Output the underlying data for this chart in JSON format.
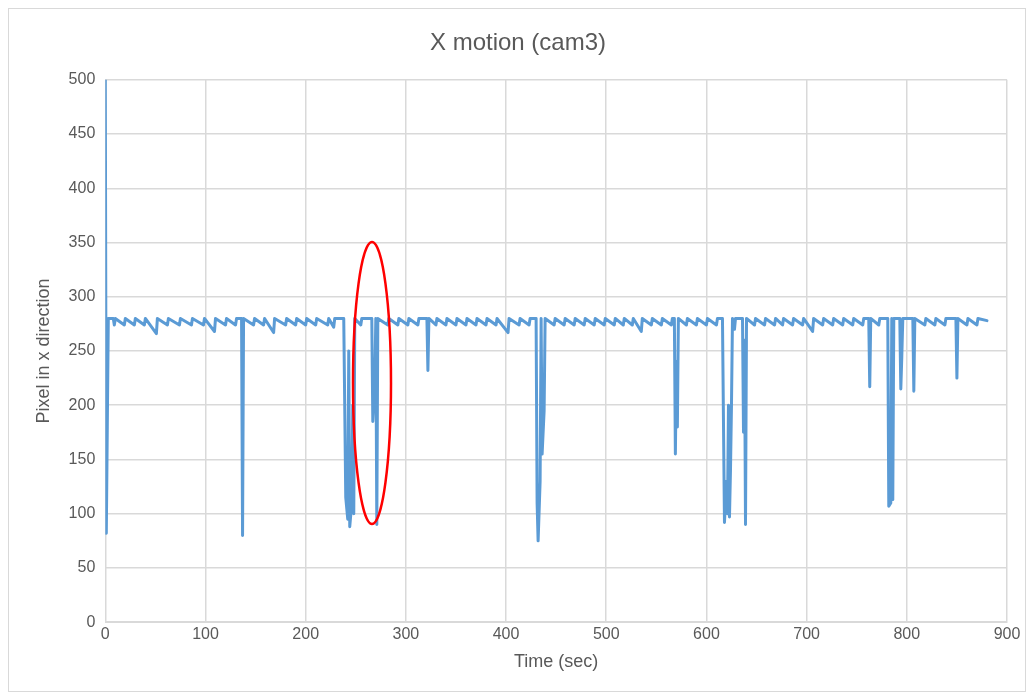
{
  "chart_data": {
    "type": "line",
    "title": "X motion (cam3)",
    "xlabel": "Time (sec)",
    "ylabel": "Pixel in x direction",
    "x": [
      0,
      1,
      2,
      3,
      8,
      9,
      10,
      19,
      20,
      29,
      30,
      39,
      40,
      51,
      52,
      62,
      63,
      74,
      75,
      86,
      87,
      98,
      99,
      109,
      110,
      120,
      121,
      130,
      131,
      136,
      137,
      138,
      148,
      149,
      158,
      159,
      168,
      169,
      180,
      181,
      190,
      191,
      200,
      201,
      210,
      211,
      222,
      223,
      228,
      229,
      238,
      240,
      242,
      243,
      244,
      246,
      247,
      248,
      249,
      255,
      256,
      266,
      267,
      269,
      270,
      271,
      272,
      282,
      283,
      292,
      293,
      302,
      303,
      312,
      313,
      321,
      322,
      323,
      330,
      331,
      340,
      341,
      350,
      351,
      360,
      361,
      370,
      371,
      380,
      381,
      390,
      391,
      402,
      403,
      413,
      414,
      423,
      424,
      430,
      431,
      432,
      434,
      435,
      436,
      438,
      439,
      448,
      449,
      458,
      459,
      468,
      469,
      478,
      479,
      488,
      489,
      498,
      499,
      508,
      509,
      517,
      518,
      526,
      527,
      535,
      536,
      545,
      546,
      555,
      556,
      565,
      566,
      568,
      569,
      570,
      571,
      572,
      580,
      581,
      590,
      591,
      600,
      601,
      610,
      611,
      616,
      618,
      620,
      621,
      622,
      623,
      624,
      625,
      626,
      628,
      629,
      636,
      637,
      638,
      639,
      640,
      648,
      649,
      658,
      659,
      668,
      669,
      676,
      677,
      686,
      687,
      696,
      697,
      706,
      707,
      716,
      717,
      726,
      727,
      736,
      737,
      746,
      747,
      756,
      757,
      762,
      763,
      764,
      772,
      773,
      781,
      782,
      784,
      785,
      786,
      787,
      793,
      794,
      795,
      796,
      806,
      807,
      808,
      818,
      819,
      828,
      829,
      838,
      839,
      849,
      850,
      851,
      860,
      861,
      870,
      871,
      880
    ],
    "series": [
      {
        "color": "#5b9bd5",
        "values": [
          500,
          82,
          180,
          280,
          280,
          274,
          280,
          274,
          280,
          274,
          280,
          274,
          280,
          266,
          280,
          274,
          280,
          274,
          280,
          274,
          280,
          274,
          280,
          268,
          280,
          274,
          280,
          274,
          280,
          280,
          80,
          280,
          274,
          280,
          274,
          280,
          267,
          280,
          274,
          280,
          274,
          280,
          274,
          280,
          274,
          280,
          274,
          280,
          272,
          280,
          280,
          115,
          95,
          250,
          88,
          110,
          200,
          100,
          280,
          274,
          280,
          280,
          185,
          220,
          280,
          90,
          280,
          274,
          280,
          274,
          280,
          274,
          280,
          274,
          280,
          280,
          232,
          280,
          274,
          280,
          274,
          280,
          274,
          280,
          274,
          280,
          274,
          280,
          274,
          280,
          274,
          280,
          267,
          280,
          274,
          280,
          274,
          280,
          280,
          110,
          75,
          130,
          280,
          155,
          195,
          280,
          274,
          280,
          274,
          280,
          274,
          280,
          274,
          280,
          274,
          280,
          274,
          280,
          274,
          280,
          274,
          280,
          274,
          280,
          268,
          280,
          274,
          280,
          274,
          280,
          274,
          280,
          280,
          155,
          240,
          180,
          280,
          274,
          280,
          274,
          280,
          274,
          280,
          274,
          280,
          280,
          92,
          130,
          100,
          200,
          97,
          140,
          200,
          280,
          270,
          280,
          280,
          175,
          260,
          90,
          280,
          274,
          280,
          274,
          280,
          274,
          280,
          274,
          280,
          274,
          280,
          274,
          280,
          268,
          280,
          274,
          280,
          274,
          280,
          274,
          280,
          274,
          280,
          274,
          280,
          280,
          217,
          280,
          274,
          280,
          280,
          107,
          110,
          280,
          113,
          280,
          280,
          215,
          245,
          280,
          280,
          213,
          280,
          274,
          280,
          274,
          280,
          274,
          280,
          280,
          225,
          280,
          274,
          280,
          274,
          280,
          278
        ]
      }
    ],
    "xlim": [
      0,
      900
    ],
    "xticks": [
      0,
      100,
      200,
      300,
      400,
      500,
      600,
      700,
      800,
      900
    ],
    "ylim": [
      0,
      500
    ],
    "yticks": [
      0,
      50,
      100,
      150,
      200,
      250,
      300,
      350,
      400,
      450,
      500
    ],
    "grid": true,
    "legend": false,
    "marker": "none",
    "line_style": "solid"
  }
}
